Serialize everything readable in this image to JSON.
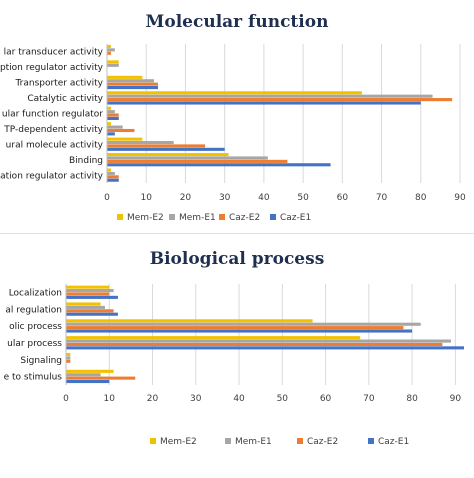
{
  "chart_data": [
    {
      "type": "bar",
      "orientation": "horizontal",
      "title": "Molecular function",
      "categories": [
        "Molecular transducer activity",
        "Transcription regulator activity",
        "Transporter activity",
        "Catalytic activity",
        "Molecular function regulator",
        "ATP-dependent activity",
        "Structural molecule activity",
        "Binding",
        "Translation regulator activity"
      ],
      "category_labels_visible": [
        "lar transducer activity",
        "ption regulator activity",
        "Transporter activity",
        "Catalytic activity",
        "ular function regulator",
        "TP-dependent activity",
        "ural molecule activity",
        "Binding",
        "ation regulator activity"
      ],
      "series": [
        {
          "name": "Mem-E2",
          "color": "#f2c200",
          "values": [
            1,
            3,
            9,
            65,
            1,
            1,
            9,
            31,
            1
          ]
        },
        {
          "name": "Mem-E1",
          "color": "#a6a6a6",
          "values": [
            2,
            3,
            12,
            83,
            2,
            4,
            17,
            41,
            2
          ]
        },
        {
          "name": "Caz-E2",
          "color": "#ed7d31",
          "values": [
            1,
            0,
            13,
            88,
            3,
            7,
            25,
            46,
            3
          ]
        },
        {
          "name": "Caz-E1",
          "color": "#4472c4",
          "values": [
            0,
            0,
            13,
            80,
            3,
            2,
            30,
            57,
            3
          ]
        }
      ],
      "xlim": [
        0,
        90
      ],
      "x_ticks": [
        "0",
        "10",
        "20",
        "30",
        "40",
        "50",
        "60",
        "70",
        "80",
        "90"
      ],
      "grid": true,
      "legend_position": "bottom",
      "legend_order": [
        "Mem-E2",
        "Mem-E1",
        "Caz-E2",
        "Caz-E1"
      ]
    },
    {
      "type": "bar",
      "orientation": "horizontal",
      "title": "Biological process",
      "categories": [
        "Localization",
        "Biological regulation",
        "Metabolic process",
        "Cellular process",
        "Signaling",
        "Response to stimulus"
      ],
      "category_labels_visible": [
        "Localization",
        "al regulation",
        "olic process",
        "ular process",
        "Signaling",
        "e to stimulus"
      ],
      "series": [
        {
          "name": "Mem-E2",
          "color": "#f2c200",
          "values": [
            10,
            8,
            57,
            68,
            1,
            11
          ]
        },
        {
          "name": "Mem-E1",
          "color": "#a6a6a6",
          "values": [
            11,
            9,
            82,
            89,
            1,
            8
          ]
        },
        {
          "name": "Caz-E2",
          "color": "#ed7d31",
          "values": [
            10,
            11,
            78,
            87,
            1,
            16
          ]
        },
        {
          "name": "Caz-E1",
          "color": "#4472c4",
          "values": [
            12,
            12,
            80,
            92,
            0,
            10
          ]
        }
      ],
      "xlim": [
        0,
        92
      ],
      "x_ticks": [
        "0",
        "10",
        "20",
        "30",
        "40",
        "50",
        "60",
        "70",
        "80",
        "90"
      ],
      "grid": true,
      "legend_position": "bottom",
      "legend_order": [
        "Mem-E2",
        "Mem-E1",
        "Caz-E2",
        "Caz-E1"
      ]
    }
  ]
}
